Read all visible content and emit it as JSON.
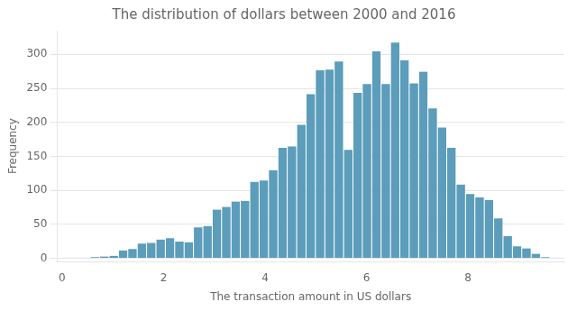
{
  "chart_data": {
    "type": "histogram",
    "title": "The distribution of dollars between 2000 and 2016",
    "xlabel": "The transaction amount in US dollars",
    "ylabel": "Frequency",
    "bins": [
      0,
      0.1849056604,
      0.3698113208,
      0.5547169811,
      0.7396226415,
      0.9245283019,
      1.1094339623,
      1.2943396226,
      1.479245283,
      1.6641509434,
      1.8490566038,
      2.0339622642,
      2.2188679245,
      2.4037735849,
      2.5886792453,
      2.7735849057,
      2.958490566,
      3.1433962264,
      3.3283018868,
      3.5132075472,
      3.6981132075,
      3.8830188679,
      4.0679245283,
      4.2528301887,
      4.4377358491,
      4.6226415094,
      4.8075471698,
      4.9924528302,
      5.1773584906,
      5.3622641509,
      5.5471698113,
      5.7320754717,
      5.9169811321,
      6.1018867925,
      6.2867924528,
      6.4716981132,
      6.6566037736,
      6.841509434,
      7.0264150943,
      7.2113207547,
      7.3962264151,
      7.5811320755,
      7.7660377358,
      7.9509433962,
      8.1358490566,
      8.320754717,
      8.5056603774,
      8.6905660377,
      8.8754716981,
      9.0603773585,
      9.2452830189,
      9.4301886792,
      9.6150943396,
      9.8
    ],
    "values": [
      1,
      1,
      1,
      2,
      3,
      4,
      12,
      14,
      22,
      23,
      28,
      30,
      25,
      24,
      46,
      48,
      72,
      76,
      84,
      85,
      113,
      115,
      130,
      163,
      165,
      197,
      242,
      277,
      278,
      290,
      160,
      244,
      257,
      305,
      257,
      318,
      292,
      258,
      275,
      221,
      193,
      163,
      109,
      95,
      90,
      86,
      59,
      33,
      18,
      15,
      7,
      2,
      1
    ],
    "color": "#5b9dba",
    "xlim": [
      -0.1,
      9.9
    ],
    "ylim": [
      -5,
      335
    ],
    "xticks": [
      0,
      2,
      4,
      6,
      8
    ],
    "yticks": [
      0,
      50,
      100,
      150,
      200,
      250,
      300
    ],
    "grid": "y"
  }
}
